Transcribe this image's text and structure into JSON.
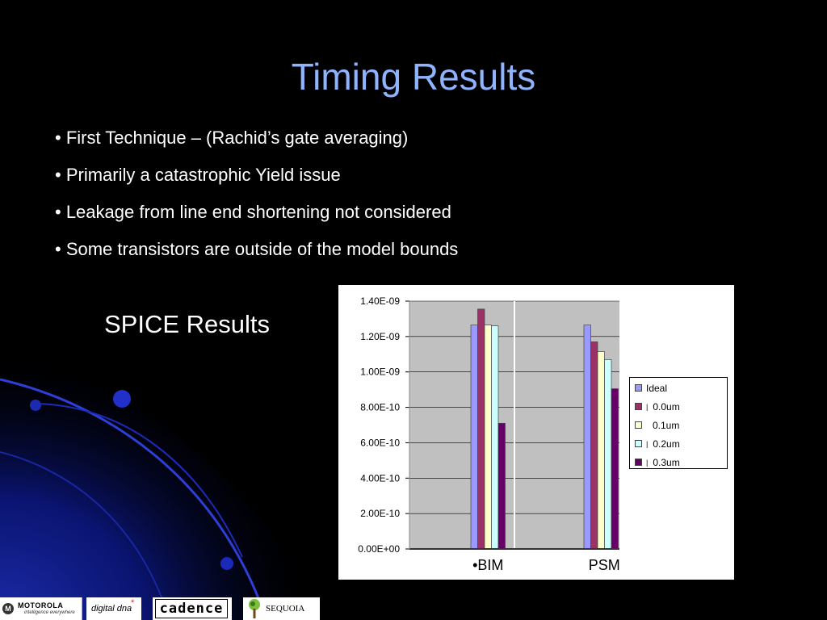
{
  "slide": {
    "title": "Timing Results",
    "bullets": [
      "• First Technique – (Rachid’s gate averaging)",
      "• Primarily a catastrophic Yield issue",
      "• Leakage from line end shortening not considered",
      "• Some transistors are outside of the model bounds"
    ],
    "chart_label": "SPICE Results"
  },
  "chart_data": {
    "type": "bar",
    "title": "",
    "xlabel": "",
    "ylabel": "",
    "categories": [
      "•BIM",
      "PSM"
    ],
    "ylim": [
      0,
      1.4e-09
    ],
    "y_ticks": [
      0,
      2e-10,
      4e-10,
      6e-10,
      8e-10,
      1e-09,
      1.2e-09,
      1.4e-09
    ],
    "y_tick_labels": [
      "0.00E+00",
      "2.00E-10",
      "4.00E-10",
      "6.00E-10",
      "8.00E-10",
      "1.00E-09",
      "1.20E-09",
      "1.40E-09"
    ],
    "grid": true,
    "legend_position": "right",
    "series": [
      {
        "name": "Ideal",
        "values": [
          1.265e-09,
          1.265e-09
        ],
        "color": "#9999ff"
      },
      {
        "name": "0.0um",
        "values": [
          1.355e-09,
          1.17e-09
        ],
        "color": "#993366"
      },
      {
        "name": "0.1um",
        "values": [
          1.265e-09,
          1.115e-09
        ],
        "color": "#ffffcc"
      },
      {
        "name": "0.2um",
        "values": [
          1.26e-09,
          1.07e-09
        ],
        "color": "#ccffff"
      },
      {
        "name": "0.3um",
        "values": [
          7.1e-10,
          9.05e-10
        ],
        "color": "#660066"
      }
    ],
    "legend_markers": [
      "",
      "|",
      "",
      "|",
      "|"
    ]
  },
  "logos": {
    "motorola_mark": "M",
    "motorola": "MOTOROLA",
    "motorola_tagline": "intelligence everywhere",
    "digitaldna": "digital dna",
    "digitaldna_mark": "*",
    "cadence": "cadence",
    "sequoia": "SEQUOIA"
  }
}
